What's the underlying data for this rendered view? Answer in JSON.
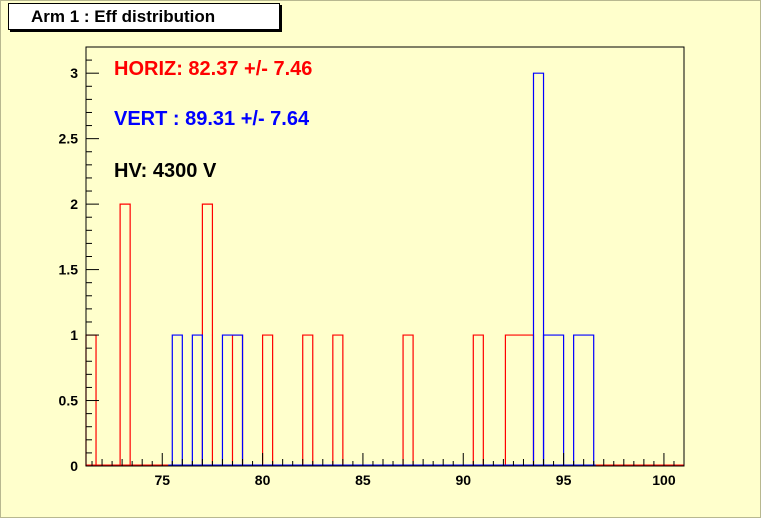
{
  "chart_data": {
    "type": "histogram",
    "title": "Arm 1 : Eff distribution",
    "xlabel": "",
    "ylabel": "",
    "xlim": [
      71.2,
      101.0
    ],
    "ylim": [
      0,
      3.2
    ],
    "x_ticks": [
      75,
      80,
      85,
      90,
      95,
      100
    ],
    "y_ticks": [
      0,
      0.5,
      1,
      1.5,
      2,
      2.5,
      3
    ],
    "y_tick_labels": [
      "0",
      "0.5",
      "1",
      "1.5",
      "2",
      "2.5",
      "3"
    ],
    "x_tick_labels": [
      "75",
      "80",
      "85",
      "90",
      "95",
      "100"
    ],
    "grid": false,
    "series": [
      {
        "color": "#ff0000",
        "bins": [
          [
            71.2,
            71.7,
            1
          ],
          [
            72.9,
            73.4,
            2
          ],
          [
            77.0,
            77.5,
            2
          ],
          [
            78.5,
            79.0,
            1
          ],
          [
            80.0,
            80.5,
            1
          ],
          [
            82.0,
            82.5,
            1
          ],
          [
            83.5,
            84.0,
            1
          ],
          [
            87.0,
            87.5,
            1
          ],
          [
            90.5,
            91.0,
            1
          ],
          [
            92.1,
            93.5,
            1
          ]
        ]
      },
      {
        "color": "#0000ff",
        "bins": [
          [
            75.5,
            76.0,
            1
          ],
          [
            76.5,
            77.0,
            1
          ],
          [
            78.0,
            79.0,
            1
          ],
          [
            93.5,
            94.0,
            3
          ],
          [
            94.0,
            95.0,
            1
          ],
          [
            95.5,
            96.5,
            1
          ]
        ]
      }
    ],
    "annotations": [
      {
        "text": "HORIZ: 82.37 +/- 7.46",
        "color": "#ff0000"
      },
      {
        "text": "VERT : 89.31 +/- 7.64",
        "color": "#0000ff"
      },
      {
        "text": "HV: 4300 V",
        "color": "#000000"
      }
    ]
  }
}
